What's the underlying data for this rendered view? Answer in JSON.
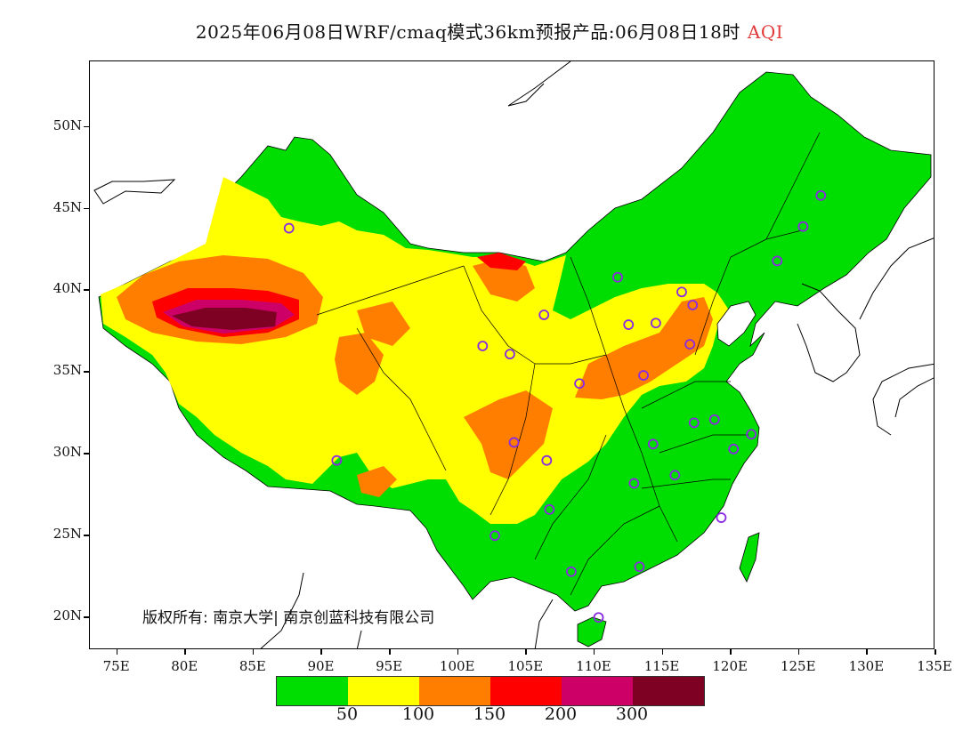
{
  "title": {
    "main": "2025年06月08日WRF/cmaq模式36km预报产品:06月08日18时",
    "variable": "AQI"
  },
  "map": {
    "lat_ticks": [
      "50N",
      "45N",
      "40N",
      "35N",
      "30N",
      "25N",
      "20N"
    ],
    "lon_ticks": [
      "75E",
      "80E",
      "85E",
      "90E",
      "95E",
      "100E",
      "105E",
      "110E",
      "115E",
      "120E",
      "125E",
      "130E",
      "135E"
    ],
    "extent": {
      "lon_min": 73.0,
      "lon_max": 135.0,
      "lat_min": 18.0,
      "lat_max": 54.0
    },
    "copyright": "版权所有: 南京大学| 南京创蓝科技有限公司"
  },
  "legend": {
    "colors": [
      "#00dd00",
      "#ffff00",
      "#ff7e00",
      "#ff0000",
      "#cc0066",
      "#7e0023"
    ],
    "labels": [
      "50",
      "100",
      "150",
      "200",
      "300"
    ]
  },
  "stations": [
    {
      "lon": 87.6,
      "lat": 43.8
    },
    {
      "lon": 91.1,
      "lat": 29.6
    },
    {
      "lon": 101.8,
      "lat": 36.6
    },
    {
      "lon": 103.8,
      "lat": 36.1
    },
    {
      "lon": 106.3,
      "lat": 38.5
    },
    {
      "lon": 111.7,
      "lat": 40.8
    },
    {
      "lon": 112.5,
      "lat": 37.9
    },
    {
      "lon": 114.5,
      "lat": 38.0
    },
    {
      "lon": 116.4,
      "lat": 39.9
    },
    {
      "lon": 117.2,
      "lat": 39.1
    },
    {
      "lon": 117.0,
      "lat": 36.7
    },
    {
      "lon": 113.6,
      "lat": 34.8
    },
    {
      "lon": 108.9,
      "lat": 34.3
    },
    {
      "lon": 104.1,
      "lat": 30.7
    },
    {
      "lon": 106.5,
      "lat": 29.6
    },
    {
      "lon": 106.7,
      "lat": 26.6
    },
    {
      "lon": 102.7,
      "lat": 25.0
    },
    {
      "lon": 108.3,
      "lat": 22.8
    },
    {
      "lon": 113.3,
      "lat": 23.1
    },
    {
      "lon": 110.3,
      "lat": 20.0
    },
    {
      "lon": 112.9,
      "lat": 28.2
    },
    {
      "lon": 115.9,
      "lat": 28.7
    },
    {
      "lon": 114.3,
      "lat": 30.6
    },
    {
      "lon": 117.3,
      "lat": 31.9
    },
    {
      "lon": 118.8,
      "lat": 32.1
    },
    {
      "lon": 120.2,
      "lat": 30.3
    },
    {
      "lon": 121.5,
      "lat": 31.2
    },
    {
      "lon": 119.3,
      "lat": 26.1
    },
    {
      "lon": 123.4,
      "lat": 41.8
    },
    {
      "lon": 125.3,
      "lat": 43.9
    },
    {
      "lon": 126.6,
      "lat": 45.8
    }
  ]
}
